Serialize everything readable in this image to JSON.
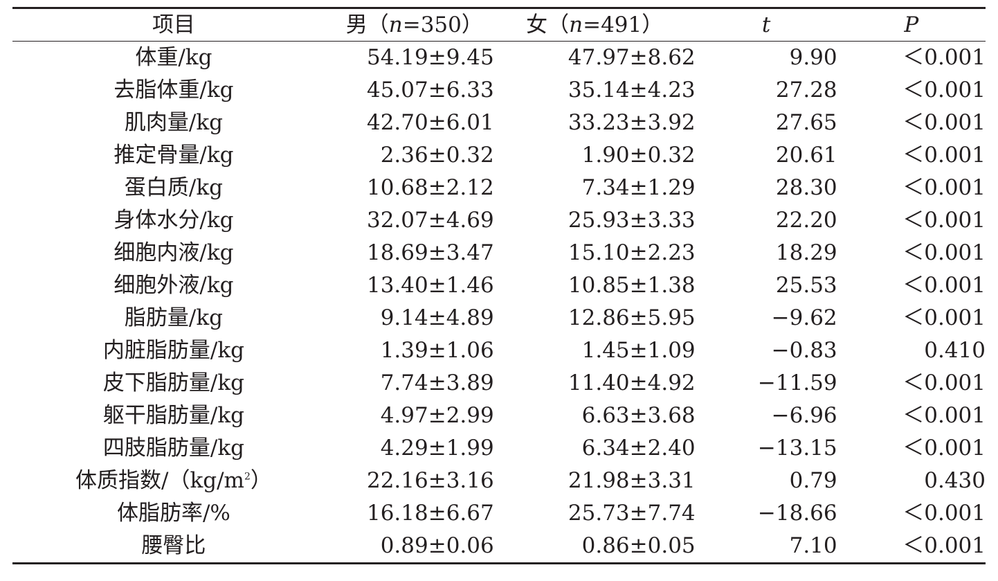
{
  "headers": {
    "item": "项目",
    "male_prefix": "男（",
    "male_n": "n",
    "male_suffix": "=350）",
    "female_prefix": "女（",
    "female_n": "n",
    "female_suffix": "=491）",
    "t": "t",
    "p": "P"
  },
  "rows": [
    {
      "item": "体重/kg",
      "male": "54.19±9.45",
      "female": "47.97±8.62",
      "t": "9.90",
      "p": "＜0.001"
    },
    {
      "item": "去脂体重/kg",
      "male": "45.07±6.33",
      "female": "35.14±4.23",
      "t": "27.28",
      "p": "＜0.001"
    },
    {
      "item": "肌肉量/kg",
      "male": "42.70±6.01",
      "female": "33.23±3.92",
      "t": "27.65",
      "p": "＜0.001"
    },
    {
      "item": "推定骨量/kg",
      "male": "2.36±0.32",
      "female": "1.90±0.32",
      "t": "20.61",
      "p": "＜0.001"
    },
    {
      "item": "蛋白质/kg",
      "male": "10.68±2.12",
      "female": "7.34±1.29",
      "t": "28.30",
      "p": "＜0.001"
    },
    {
      "item": "身体水分/kg",
      "male": "32.07±4.69",
      "female": "25.93±3.33",
      "t": "22.20",
      "p": "＜0.001"
    },
    {
      "item": "细胞内液/kg",
      "male": "18.69±3.47",
      "female": "15.10±2.23",
      "t": "18.29",
      "p": "＜0.001"
    },
    {
      "item": "细胞外液/kg",
      "male": "13.40±1.46",
      "female": "10.85±1.38",
      "t": "25.53",
      "p": "＜0.001"
    },
    {
      "item": "脂肪量/kg",
      "male": "9.14±4.89",
      "female": "12.86±5.95",
      "t": "−9.62",
      "p": "＜0.001"
    },
    {
      "item": "内脏脂肪量/kg",
      "male": "1.39±1.06",
      "female": "1.45±1.09",
      "t": "−0.83",
      "p": "0.410"
    },
    {
      "item": "皮下脂肪量/kg",
      "male": "7.74±3.89",
      "female": "11.40±4.92",
      "t": "−11.59",
      "p": "＜0.001"
    },
    {
      "item": "躯干脂肪量/kg",
      "male": "4.97±2.99",
      "female": "6.63±3.68",
      "t": "−6.96",
      "p": "＜0.001"
    },
    {
      "item": "四肢脂肪量/kg",
      "male": "4.29±1.99",
      "female": "6.34±2.40",
      "t": "−13.15",
      "p": "＜0.001"
    },
    {
      "item_prefix": "体质指数/（kg/m",
      "item_sup": "2",
      "item_suffix": "）",
      "male": "22.16±3.16",
      "female": "21.98±3.31",
      "t": "0.79",
      "p": "0.430"
    },
    {
      "item": "体脂肪率/%",
      "male": "16.18±6.67",
      "female": "25.73±7.74",
      "t": "−18.66",
      "p": "＜0.001"
    },
    {
      "item": "腰臀比",
      "male": "0.89±0.06",
      "female": "0.86±0.05",
      "t": "7.10",
      "p": "＜0.001"
    }
  ]
}
